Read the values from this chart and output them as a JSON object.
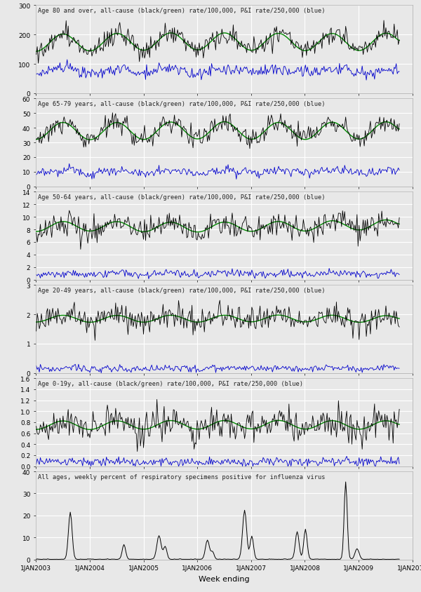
{
  "panels": [
    {
      "title": "Age 80 and over, all-cause (black/green) rate/100,000, P&I rate/250,000 (blue)",
      "ylim": [
        0,
        300
      ],
      "yticks": [
        0,
        100,
        200,
        300
      ],
      "ac_mean": 175,
      "ac_amp": 40,
      "ac_noise": 18,
      "pi_mean": 75,
      "pi_amp": 30,
      "pi_noise": 10,
      "seasonal_amp": 30,
      "seasonal_noise": 8
    },
    {
      "title": "Age 65-79 years, all-cause (black/green) rate/100,000, P&I rate/250,000 (blue)",
      "ylim": [
        0,
        60
      ],
      "yticks": [
        0,
        10,
        20,
        30,
        40,
        50,
        60
      ],
      "ac_mean": 38,
      "ac_amp": 7,
      "ac_noise": 3.5,
      "pi_mean": 10,
      "pi_amp": 4,
      "pi_noise": 1.5,
      "seasonal_amp": 6,
      "seasonal_noise": 2
    },
    {
      "title": "Age 50-64 years, all-cause (black/green) rate/100,000, P&I rate/250,000 (blue)",
      "ylim": [
        0,
        14
      ],
      "yticks": [
        0,
        2,
        4,
        6,
        8,
        10,
        12,
        14
      ],
      "ac_mean": 8.5,
      "ac_amp": 1.0,
      "ac_noise": 1.0,
      "pi_mean": 0.9,
      "pi_amp": 0.5,
      "pi_noise": 0.3,
      "seasonal_amp": 0.8,
      "seasonal_noise": 0.4
    },
    {
      "title": "Age 20-49 years, all-cause (black/green) rate/100,000, P&I rate/250,000 (blue)",
      "ylim": [
        0,
        3
      ],
      "yticks": [
        0,
        1,
        2,
        3
      ],
      "ac_mean": 1.85,
      "ac_amp": 0.15,
      "ac_noise": 0.22,
      "pi_mean": 0.15,
      "pi_amp": 0.08,
      "pi_noise": 0.06,
      "seasonal_amp": 0.12,
      "seasonal_noise": 0.05
    },
    {
      "title": "Age 0-19y, all-cause (black/green) rate/100,000, P&I rate/250,000 (blue)",
      "ylim": [
        0,
        1.6
      ],
      "yticks": [
        0.0,
        0.2,
        0.4,
        0.6,
        0.8,
        1.0,
        1.2,
        1.4,
        1.6
      ],
      "ac_mean": 0.75,
      "ac_amp": 0.12,
      "ac_noise": 0.15,
      "pi_mean": 0.08,
      "pi_amp": 0.06,
      "pi_noise": 0.04,
      "seasonal_amp": 0.08,
      "seasonal_noise": 0.03
    },
    {
      "title": "All ages, weekly percent of respiratory specimens positive for influenza virus",
      "ylim": [
        0,
        40
      ],
      "yticks": [
        0,
        10,
        20,
        30,
        40
      ],
      "ac_mean": 0,
      "ac_amp": 0,
      "ac_noise": 0,
      "pi_mean": 0,
      "pi_amp": 0,
      "pi_noise": 0,
      "seasonal_amp": 0,
      "seasonal_noise": 0
    }
  ],
  "black_color": "#000000",
  "green_color": "#008800",
  "blue_color": "#0000cc",
  "bg_color": "#e8e8e8",
  "grid_color": "#ffffff",
  "n_weeks": 353,
  "xlabel": "Week ending",
  "title_fontsize": 6.2,
  "tick_fontsize": 6.5,
  "xlabel_fontsize": 8
}
